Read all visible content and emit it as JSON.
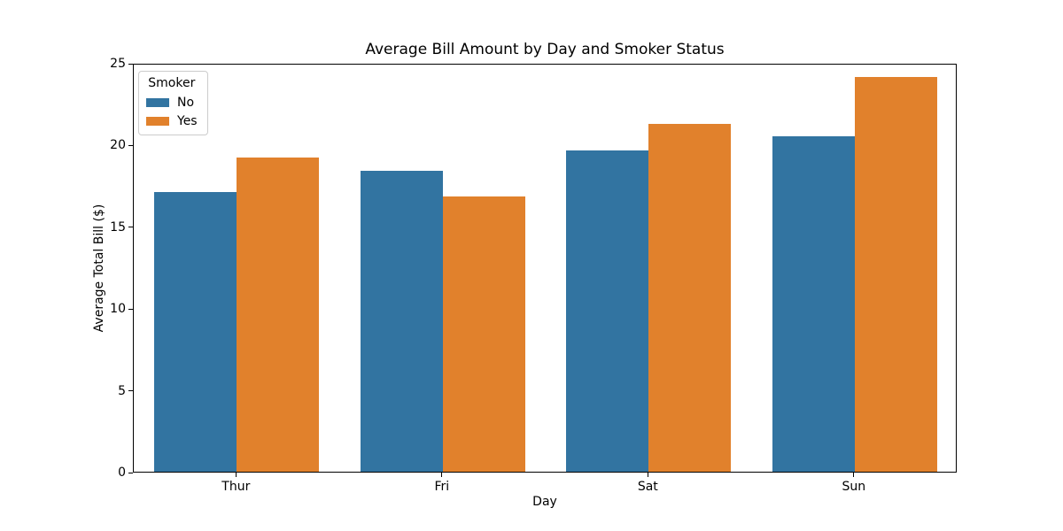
{
  "title": "Average Bill Amount by Day and Smoker Status",
  "chart_data": {
    "type": "bar",
    "categories": [
      "Thur",
      "Fri",
      "Sat",
      "Sun"
    ],
    "series": [
      {
        "name": "No",
        "color": "#3274a1",
        "values": [
          17.11,
          18.42,
          19.66,
          20.51
        ]
      },
      {
        "name": "Yes",
        "color": "#e1812c",
        "values": [
          19.19,
          16.81,
          21.28,
          24.12
        ]
      }
    ],
    "title": "Average Bill Amount by Day and Smoker Status",
    "xlabel": "Day",
    "ylabel": "Average Total Bill ($)",
    "ylim": [
      0,
      25
    ],
    "yticks": [
      "0",
      "5",
      "10",
      "15",
      "20",
      "25"
    ],
    "grid": false,
    "legend": {
      "title": "Smoker",
      "position": "upper left",
      "entries": [
        "No",
        "Yes"
      ]
    }
  }
}
